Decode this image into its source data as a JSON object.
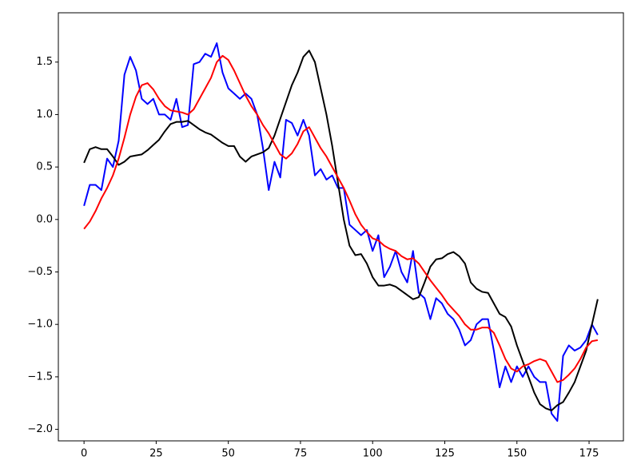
{
  "chart_data": {
    "type": "line",
    "x": [
      0,
      2,
      4,
      6,
      8,
      10,
      12,
      14,
      16,
      18,
      20,
      22,
      24,
      26,
      28,
      30,
      32,
      34,
      36,
      38,
      40,
      42,
      44,
      46,
      48,
      50,
      52,
      54,
      56,
      58,
      60,
      62,
      64,
      66,
      68,
      70,
      72,
      74,
      76,
      78,
      80,
      82,
      84,
      86,
      88,
      90,
      92,
      94,
      96,
      98,
      100,
      102,
      104,
      106,
      108,
      110,
      112,
      114,
      116,
      118,
      120,
      122,
      124,
      126,
      128,
      130,
      132,
      134,
      136,
      138,
      140,
      142,
      144,
      146,
      148,
      150,
      152,
      154,
      156,
      158,
      160,
      162,
      164,
      166,
      168,
      170,
      172,
      174,
      176,
      178
    ],
    "series": [
      {
        "color": "#0000ff",
        "values": [
          0.13,
          0.33,
          0.33,
          0.28,
          0.58,
          0.5,
          0.75,
          1.38,
          1.55,
          1.42,
          1.15,
          1.1,
          1.15,
          1.0,
          1.0,
          0.95,
          1.15,
          0.88,
          0.9,
          1.48,
          1.5,
          1.58,
          1.55,
          1.68,
          1.4,
          1.25,
          1.2,
          1.15,
          1.2,
          1.15,
          1.0,
          0.68,
          0.28,
          0.55,
          0.4,
          0.95,
          0.92,
          0.8,
          0.95,
          0.8,
          0.42,
          0.48,
          0.38,
          0.42,
          0.3,
          0.3,
          -0.05,
          -0.1,
          -0.15,
          -0.1,
          -0.3,
          -0.15,
          -0.55,
          -0.45,
          -0.3,
          -0.5,
          -0.6,
          -0.3,
          -0.7,
          -0.75,
          -0.95,
          -0.75,
          -0.8,
          -0.9,
          -0.95,
          -1.05,
          -1.2,
          -1.15,
          -1.0,
          -0.95,
          -0.95,
          -1.25,
          -1.6,
          -1.4,
          -1.55,
          -1.4,
          -1.5,
          -1.4,
          -1.5,
          -1.55,
          -1.55,
          -1.85,
          -1.92,
          -1.3,
          -1.2,
          -1.25,
          -1.22,
          -1.15,
          -1.0,
          -1.1
        ]
      },
      {
        "color": "#000000",
        "values": [
          0.54,
          0.67,
          0.69,
          0.67,
          0.67,
          0.6,
          0.52,
          0.55,
          0.6,
          0.61,
          0.62,
          0.66,
          0.71,
          0.76,
          0.84,
          0.91,
          0.93,
          0.93,
          0.94,
          0.9,
          0.86,
          0.83,
          0.81,
          0.77,
          0.73,
          0.7,
          0.7,
          0.6,
          0.55,
          0.6,
          0.62,
          0.64,
          0.68,
          0.8,
          0.96,
          1.12,
          1.28,
          1.4,
          1.55,
          1.61,
          1.5,
          1.25,
          1.0,
          0.7,
          0.35,
          0.0,
          -0.25,
          -0.34,
          -0.33,
          -0.42,
          -0.55,
          -0.63,
          -0.63,
          -0.62,
          -0.64,
          -0.68,
          -0.72,
          -0.76,
          -0.74,
          -0.6,
          -0.45,
          -0.38,
          -0.37,
          -0.33,
          -0.31,
          -0.35,
          -0.42,
          -0.6,
          -0.66,
          -0.69,
          -0.7,
          -0.8,
          -0.9,
          -0.93,
          -1.02,
          -1.2,
          -1.35,
          -1.5,
          -1.65,
          -1.76,
          -1.8,
          -1.82,
          -1.77,
          -1.74,
          -1.65,
          -1.55,
          -1.4,
          -1.25,
          -1.0,
          -0.76
        ]
      },
      {
        "color": "#ff0000",
        "values": [
          -0.09,
          -0.02,
          0.08,
          0.2,
          0.3,
          0.42,
          0.58,
          0.78,
          1.0,
          1.17,
          1.28,
          1.3,
          1.24,
          1.15,
          1.08,
          1.04,
          1.03,
          1.02,
          1.0,
          1.05,
          1.15,
          1.25,
          1.35,
          1.5,
          1.56,
          1.52,
          1.42,
          1.3,
          1.18,
          1.08,
          1.0,
          0.9,
          0.82,
          0.72,
          0.62,
          0.58,
          0.63,
          0.72,
          0.84,
          0.88,
          0.78,
          0.68,
          0.6,
          0.5,
          0.4,
          0.3,
          0.18,
          0.05,
          -0.05,
          -0.12,
          -0.18,
          -0.2,
          -0.25,
          -0.28,
          -0.3,
          -0.35,
          -0.38,
          -0.37,
          -0.42,
          -0.5,
          -0.58,
          -0.65,
          -0.72,
          -0.8,
          -0.86,
          -0.92,
          -1.0,
          -1.05,
          -1.05,
          -1.03,
          -1.03,
          -1.08,
          -1.2,
          -1.33,
          -1.42,
          -1.45,
          -1.4,
          -1.38,
          -1.35,
          -1.33,
          -1.35,
          -1.45,
          -1.55,
          -1.53,
          -1.48,
          -1.42,
          -1.33,
          -1.22,
          -1.16,
          -1.15
        ]
      }
    ],
    "xlim": [
      -8.9,
      186.9
    ],
    "ylim": [
      -2.11,
      1.97
    ],
    "xticks": [
      0,
      25,
      50,
      75,
      100,
      125,
      150,
      175
    ],
    "yticks": [
      {
        "value": -2,
        "label": "−2.0"
      },
      {
        "value": -1.5,
        "label": "−1.5"
      },
      {
        "value": -1,
        "label": "−1.0"
      },
      {
        "value": -0.5,
        "label": "−0.5"
      },
      {
        "value": 0,
        "label": "0.0"
      },
      {
        "value": 0.5,
        "label": "0.5"
      },
      {
        "value": 1,
        "label": "1.0"
      },
      {
        "value": 1.5,
        "label": "1.5"
      }
    ]
  }
}
